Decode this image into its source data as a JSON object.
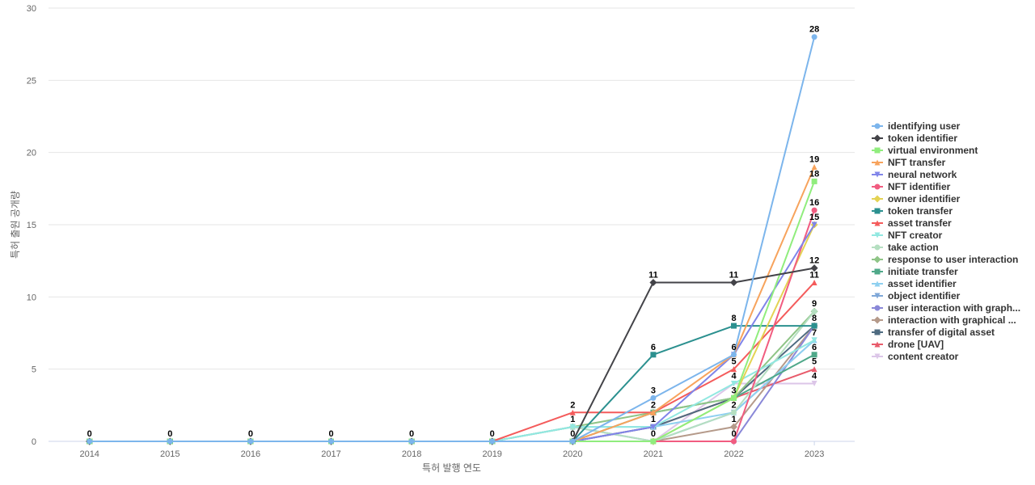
{
  "chart_data": {
    "type": "line",
    "xlabel": "특허 발행 연도",
    "ylabel": "특허 출원 공개량",
    "ylim": [
      0,
      30
    ],
    "yticks": [
      0,
      5,
      10,
      15,
      20,
      25,
      30
    ],
    "x": [
      "2014",
      "2015",
      "2016",
      "2017",
      "2018",
      "2019",
      "2020",
      "2021",
      "2022",
      "2023"
    ],
    "grid": "horizontal",
    "legend_position": "right",
    "series": [
      {
        "name": "identifying user",
        "color": "#7cb5ec",
        "marker": "circle",
        "values": [
          0,
          0,
          0,
          0,
          0,
          0,
          0,
          3,
          6,
          28
        ]
      },
      {
        "name": "token identifier",
        "color": "#434348",
        "marker": "diamond",
        "values": [
          0,
          0,
          0,
          0,
          0,
          0,
          0,
          11,
          11,
          12
        ]
      },
      {
        "name": "virtual environment",
        "color": "#90ed7d",
        "marker": "square",
        "values": [
          0,
          0,
          0,
          0,
          0,
          0,
          0,
          0,
          3,
          18
        ]
      },
      {
        "name": "NFT transfer",
        "color": "#f7a35c",
        "marker": "triangle",
        "values": [
          0,
          0,
          0,
          0,
          0,
          0,
          0,
          2,
          6,
          19
        ]
      },
      {
        "name": "neural network",
        "color": "#8085e9",
        "marker": "triangle-down",
        "values": [
          0,
          0,
          0,
          0,
          0,
          0,
          0,
          1,
          6,
          15
        ]
      },
      {
        "name": "NFT identifier",
        "color": "#f15c80",
        "marker": "circle",
        "values": [
          0,
          0,
          0,
          0,
          0,
          0,
          0,
          0,
          0,
          16
        ]
      },
      {
        "name": "owner identifier",
        "color": "#e4d354",
        "marker": "diamond",
        "values": [
          0,
          0,
          0,
          0,
          0,
          0,
          0,
          0,
          3,
          15
        ]
      },
      {
        "name": "token transfer",
        "color": "#2b908f",
        "marker": "square",
        "values": [
          0,
          0,
          0,
          0,
          0,
          0,
          0,
          6,
          8,
          8
        ]
      },
      {
        "name": "asset transfer",
        "color": "#f45b5b",
        "marker": "triangle",
        "values": [
          0,
          0,
          0,
          0,
          0,
          0,
          2,
          2,
          5,
          11
        ]
      },
      {
        "name": "NFT creator",
        "color": "#91e8e1",
        "marker": "triangle-down",
        "values": [
          0,
          0,
          0,
          0,
          0,
          0,
          1,
          1,
          4,
          7
        ]
      },
      {
        "name": "take action",
        "color": "#b5dfc1",
        "marker": "circle",
        "values": [
          0,
          0,
          0,
          0,
          0,
          0,
          1,
          0,
          2,
          9
        ]
      },
      {
        "name": "response to user interaction",
        "color": "#8fc587",
        "marker": "diamond",
        "values": [
          0,
          0,
          0,
          0,
          0,
          0,
          1,
          2,
          3,
          9
        ]
      },
      {
        "name": "initiate transfer",
        "color": "#4fa889",
        "marker": "square",
        "values": [
          0,
          0,
          0,
          0,
          0,
          0,
          0,
          2,
          3,
          6
        ]
      },
      {
        "name": "asset identifier",
        "color": "#8ed0f0",
        "marker": "triangle",
        "values": [
          0,
          0,
          0,
          0,
          0,
          0,
          1,
          1,
          2,
          7
        ]
      },
      {
        "name": "object identifier",
        "color": "#7ea7d8",
        "marker": "triangle-down",
        "values": [
          0,
          0,
          0,
          0,
          0,
          0,
          1,
          0,
          2,
          7
        ]
      },
      {
        "name": "user interaction with graph...",
        "color": "#8a88d8",
        "marker": "circle",
        "values": [
          0,
          0,
          0,
          0,
          0,
          0,
          0,
          0,
          0,
          8
        ]
      },
      {
        "name": "interaction with graphical ...",
        "color": "#b59a8a",
        "marker": "diamond",
        "values": [
          0,
          0,
          0,
          0,
          0,
          0,
          0,
          0,
          1,
          8
        ]
      },
      {
        "name": "transfer of digital asset",
        "color": "#4e6b80",
        "marker": "square",
        "values": [
          0,
          0,
          0,
          0,
          0,
          0,
          0,
          1,
          3,
          8
        ]
      },
      {
        "name": "drone [UAV]",
        "color": "#e85b6b",
        "marker": "triangle",
        "values": [
          0,
          0,
          0,
          0,
          0,
          0,
          0,
          1,
          3,
          5
        ]
      },
      {
        "name": "content creator",
        "color": "#dcc6e8",
        "marker": "triangle-down",
        "values": [
          0,
          0,
          0,
          0,
          0,
          0,
          0,
          0,
          4,
          4
        ]
      }
    ],
    "data_labels": [
      {
        "x": "2014",
        "text": "0",
        "value": 0
      },
      {
        "x": "2015",
        "text": "0",
        "value": 0
      },
      {
        "x": "2016",
        "text": "0",
        "value": 0
      },
      {
        "x": "2017",
        "text": "0",
        "value": 0
      },
      {
        "x": "2018",
        "text": "0",
        "value": 0
      },
      {
        "x": "2019",
        "text": "0",
        "value": 0
      },
      {
        "x": "2020",
        "text": "2",
        "value": 2
      },
      {
        "x": "2020",
        "text": "1",
        "value": 1
      },
      {
        "x": "2020",
        "text": "0",
        "value": 0
      },
      {
        "x": "2021",
        "text": "11",
        "value": 11
      },
      {
        "x": "2021",
        "text": "6",
        "value": 6
      },
      {
        "x": "2021",
        "text": "3",
        "value": 3
      },
      {
        "x": "2021",
        "text": "2",
        "value": 2
      },
      {
        "x": "2021",
        "text": "1",
        "value": 1
      },
      {
        "x": "2021",
        "text": "0",
        "value": 0
      },
      {
        "x": "2022",
        "text": "11",
        "value": 11
      },
      {
        "x": "2022",
        "text": "8",
        "value": 8
      },
      {
        "x": "2022",
        "text": "6",
        "value": 6
      },
      {
        "x": "2022",
        "text": "5",
        "value": 5
      },
      {
        "x": "2022",
        "text": "4",
        "value": 4
      },
      {
        "x": "2022",
        "text": "3",
        "value": 3
      },
      {
        "x": "2022",
        "text": "2",
        "value": 2
      },
      {
        "x": "2022",
        "text": "1",
        "value": 1
      },
      {
        "x": "2022",
        "text": "0",
        "value": 0
      },
      {
        "x": "2023",
        "text": "28",
        "value": 28
      },
      {
        "x": "2023",
        "text": "19",
        "value": 19
      },
      {
        "x": "2023",
        "text": "18",
        "value": 18
      },
      {
        "x": "2023",
        "text": "16",
        "value": 16
      },
      {
        "x": "2023",
        "text": "15",
        "value": 15
      },
      {
        "x": "2023",
        "text": "12",
        "value": 12
      },
      {
        "x": "2023",
        "text": "11",
        "value": 11
      },
      {
        "x": "2023",
        "text": "9",
        "value": 9
      },
      {
        "x": "2023",
        "text": "8",
        "value": 8
      },
      {
        "x": "2023",
        "text": "7",
        "value": 7
      },
      {
        "x": "2023",
        "text": "6",
        "value": 6
      },
      {
        "x": "2023",
        "text": "5",
        "value": 5
      },
      {
        "x": "2023",
        "text": "4",
        "value": 4
      }
    ]
  }
}
